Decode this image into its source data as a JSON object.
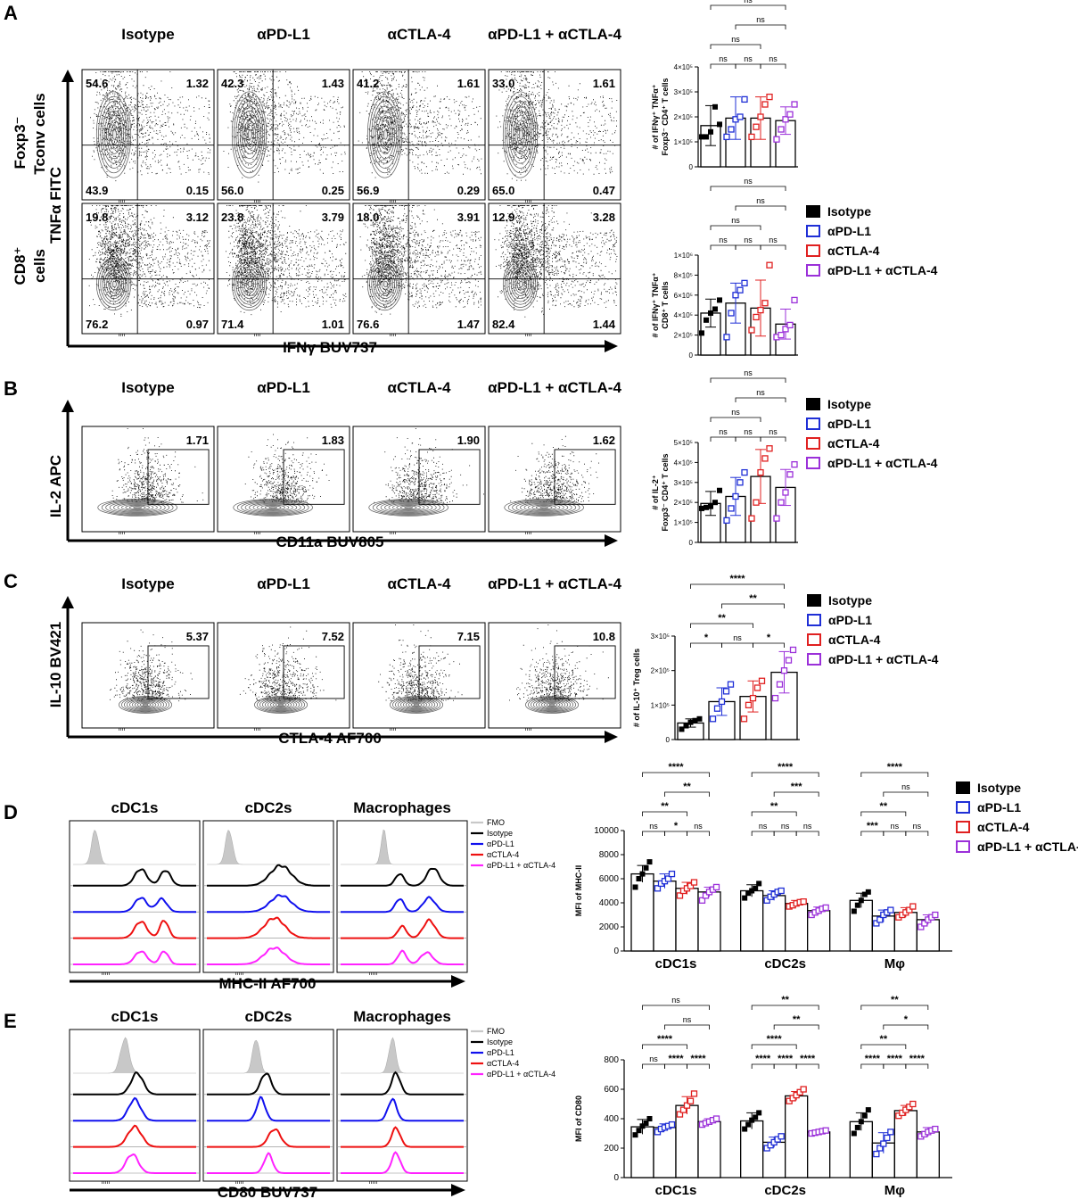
{
  "colors": {
    "isotype": "#000000",
    "pdl1": "#1f2fd6",
    "ctla4": "#e02020",
    "combo": "#9b30d9",
    "fmo": "#c8c8c8",
    "hist_pdl1": "#1010ee",
    "hist_ctla4": "#ee1010",
    "hist_combo": "#ff22ff"
  },
  "panels": {
    "A": "A",
    "B": "B",
    "C": "C",
    "D": "D",
    "E": "E"
  },
  "conditions": [
    "Isotype",
    "αPD-L1",
    "αCTLA-4",
    "αPD-L1 + αCTLA-4"
  ],
  "legend_full": [
    "Isotype",
    "αPD-L1",
    "αCTLA-4",
    "αPD-L1 + αCTLA-4"
  ],
  "panel_A": {
    "row1_label": [
      "Foxp3",
      "⁻",
      "Tconv cells"
    ],
    "row2_label": [
      "CD8",
      "⁺",
      "cells"
    ],
    "y_axis": "TNFα FITC",
    "x_axis": "IFNγ BUV737",
    "row1_quadrants": [
      [
        "54.6",
        "1.32",
        "43.9",
        "0.15"
      ],
      [
        "42.3",
        "1.43",
        "56.0",
        "0.25"
      ],
      [
        "41.2",
        "1.61",
        "56.9",
        "0.29"
      ],
      [
        "33.0",
        "1.61",
        "65.0",
        "0.47"
      ]
    ],
    "row2_quadrants": [
      [
        "19.8",
        "3.12",
        "76.2",
        "0.97"
      ],
      [
        "23.8",
        "3.79",
        "71.4",
        "1.01"
      ],
      [
        "18.0",
        "3.91",
        "76.6",
        "1.47"
      ],
      [
        "12.9",
        "3.28",
        "82.4",
        "1.44"
      ]
    ]
  },
  "panel_B": {
    "y_axis": "IL-2 APC",
    "x_axis": "CD11a BUV805",
    "gates": [
      "1.71",
      "1.83",
      "1.90",
      "1.62"
    ]
  },
  "panel_C": {
    "y_axis": "IL-10 BV421",
    "x_axis": "CTLA-4 AF700",
    "gates": [
      "5.37",
      "7.52",
      "7.15",
      "10.8"
    ]
  },
  "panel_D": {
    "columns": [
      "cDC1s",
      "cDC2s",
      "Macrophages"
    ],
    "x_axis": "MHC-II AF700",
    "hist_legend": [
      "FMO",
      "Isotype",
      "αPD-L1",
      "αCTLA-4",
      "αPD-L1 + αCTLA-4"
    ]
  },
  "panel_E": {
    "columns": [
      "cDC1s",
      "cDC2s",
      "Macrophages"
    ],
    "x_axis": "CD80 BUV737",
    "hist_legend": [
      "FMO",
      "Isotype",
      "αPD-L1",
      "αCTLA-4",
      "αPD-L1 + αCTLA-4"
    ]
  },
  "chart_data": [
    {
      "id": "A1",
      "type": "bar",
      "ylabel": [
        "# of IFNγ⁺ TNFα⁺",
        "Foxp3⁻ CD4⁺ T cells"
      ],
      "ylim": [
        0,
        400000
      ],
      "ticks": [
        0,
        100000,
        200000,
        300000,
        400000
      ],
      "tick_labels": [
        "0",
        "1×10⁵",
        "2×10⁵",
        "3×10⁵",
        "4×10⁵"
      ],
      "categories": [
        "Isotype",
        "αPD-L1",
        "αCTLA-4",
        "αPD-L1 + αCTLA-4"
      ],
      "values": [
        165000,
        195000,
        195000,
        185000
      ],
      "errors": [
        80000,
        85000,
        85000,
        55000
      ],
      "points": [
        [
          120000,
          120000,
          140000,
          240000,
          170000
        ],
        [
          120000,
          150000,
          190000,
          200000,
          270000
        ],
        [
          120000,
          160000,
          200000,
          250000,
          280000
        ],
        [
          110000,
          150000,
          190000,
          210000,
          250000
        ]
      ],
      "sig": [
        {
          "pair": [
            0,
            1
          ],
          "label": "ns"
        },
        {
          "pair": [
            1,
            2
          ],
          "label": "ns"
        },
        {
          "pair": [
            2,
            3
          ],
          "label": "ns"
        },
        {
          "pair": [
            0,
            2
          ],
          "label": "ns"
        },
        {
          "pair": [
            1,
            3
          ],
          "label": "ns"
        },
        {
          "pair": [
            0,
            3
          ],
          "label": "ns"
        }
      ]
    },
    {
      "id": "A2",
      "type": "bar",
      "ylabel": [
        "# of IFNγ⁺ TNFα⁺",
        "CD8⁺ T cells"
      ],
      "ylim": [
        0,
        1000000
      ],
      "ticks": [
        0,
        200000,
        400000,
        600000,
        800000,
        1000000
      ],
      "tick_labels": [
        "0",
        "2×10⁵",
        "4×10⁵",
        "6×10⁵",
        "8×10⁵",
        "1×10⁶"
      ],
      "categories": [
        "Isotype",
        "αPD-L1",
        "αCTLA-4",
        "αPD-L1 + αCTLA-4"
      ],
      "values": [
        420000,
        520000,
        470000,
        310000
      ],
      "errors": [
        140000,
        200000,
        280000,
        150000
      ],
      "points": [
        [
          220000,
          350000,
          420000,
          460000,
          550000
        ],
        [
          180000,
          420000,
          600000,
          650000,
          720000
        ],
        [
          250000,
          380000,
          450000,
          520000,
          900000
        ],
        [
          180000,
          200000,
          260000,
          300000,
          550000
        ]
      ],
      "sig": [
        {
          "pair": [
            0,
            1
          ],
          "label": "ns"
        },
        {
          "pair": [
            1,
            2
          ],
          "label": "ns"
        },
        {
          "pair": [
            2,
            3
          ],
          "label": "ns"
        },
        {
          "pair": [
            0,
            2
          ],
          "label": "ns"
        },
        {
          "pair": [
            1,
            3
          ],
          "label": "ns"
        },
        {
          "pair": [
            0,
            3
          ],
          "label": "ns"
        }
      ]
    },
    {
      "id": "B1",
      "type": "bar",
      "ylabel": [
        "# of  IL-2⁺",
        "Foxp3⁻ CD4⁺ T cells"
      ],
      "ylim": [
        0,
        500000
      ],
      "ticks": [
        0,
        100000,
        200000,
        300000,
        400000,
        500000
      ],
      "tick_labels": [
        "0",
        "1×10⁵",
        "2×10⁵",
        "3×10⁵",
        "4×10⁵",
        "5×10⁵"
      ],
      "categories": [
        "Isotype",
        "αPD-L1",
        "αCTLA-4",
        "αPD-L1 + αCTLA-4"
      ],
      "values": [
        195000,
        230000,
        330000,
        275000
      ],
      "errors": [
        60000,
        95000,
        135000,
        90000
      ],
      "points": [
        [
          170000,
          175000,
          180000,
          200000,
          260000
        ],
        [
          110000,
          170000,
          230000,
          300000,
          350000
        ],
        [
          120000,
          200000,
          350000,
          420000,
          470000
        ],
        [
          120000,
          200000,
          250000,
          340000,
          390000
        ]
      ],
      "sig": [
        {
          "pair": [
            0,
            1
          ],
          "label": "ns"
        },
        {
          "pair": [
            1,
            2
          ],
          "label": "ns"
        },
        {
          "pair": [
            2,
            3
          ],
          "label": "ns"
        },
        {
          "pair": [
            0,
            2
          ],
          "label": "ns"
        },
        {
          "pair": [
            1,
            3
          ],
          "label": "ns"
        },
        {
          "pair": [
            0,
            3
          ],
          "label": "ns"
        }
      ]
    },
    {
      "id": "C1",
      "type": "bar",
      "ylabel": [
        "# of IL-10⁺ Treg cells"
      ],
      "ylim": [
        0,
        300000
      ],
      "ticks": [
        0,
        100000,
        200000,
        300000
      ],
      "tick_labels": [
        "0",
        "1×10⁵",
        "2×10⁵",
        "3×10⁵"
      ],
      "categories": [
        "Isotype",
        "αPD-L1",
        "αCTLA-4",
        "αPD-L1 + αCTLA-4"
      ],
      "values": [
        48000,
        110000,
        125000,
        195000
      ],
      "errors": [
        12000,
        40000,
        45000,
        60000
      ],
      "points": [
        [
          30000,
          40000,
          50000,
          55000,
          60000
        ],
        [
          60000,
          90000,
          110000,
          140000,
          160000
        ],
        [
          60000,
          100000,
          120000,
          150000,
          170000
        ],
        [
          120000,
          160000,
          200000,
          230000,
          260000
        ]
      ],
      "sig": [
        {
          "pair": [
            0,
            1
          ],
          "label": "*"
        },
        {
          "pair": [
            1,
            2
          ],
          "label": "ns"
        },
        {
          "pair": [
            2,
            3
          ],
          "label": "*"
        },
        {
          "pair": [
            0,
            2
          ],
          "label": "**"
        },
        {
          "pair": [
            1,
            3
          ],
          "label": "**"
        },
        {
          "pair": [
            0,
            3
          ],
          "label": "****"
        }
      ]
    },
    {
      "id": "D1",
      "type": "bar",
      "ylabel": [
        "MFI of MHC-II"
      ],
      "ylim": [
        0,
        10000
      ],
      "ticks": [
        0,
        2000,
        4000,
        6000,
        8000,
        10000
      ],
      "tick_labels": [
        "0",
        "2000",
        "4000",
        "6000",
        "8000",
        "10000"
      ],
      "groups": [
        "cDC1s",
        "cDC2s",
        "Mφ"
      ],
      "series": [
        {
          "name": "Isotype",
          "values": [
            6400,
            5000,
            4200
          ]
        },
        {
          "name": "αPD-L1",
          "values": [
            5800,
            4600,
            2900
          ]
        },
        {
          "name": "αCTLA-4",
          "values": [
            5200,
            3950,
            3200
          ]
        },
        {
          "name": "αPD-L1 + αCTLA-4",
          "values": [
            4900,
            3350,
            2600
          ]
        }
      ],
      "errors": [
        [
          700,
          500,
          600
        ],
        [
          600,
          400,
          500
        ],
        [
          500,
          250,
          400
        ],
        [
          400,
          300,
          400
        ]
      ],
      "points": [
        [
          [
            5300,
            6000,
            6400,
            6900,
            7400
          ],
          [
            4400,
            4800,
            5000,
            5200,
            5600
          ],
          [
            3300,
            3800,
            4200,
            4700,
            4900
          ]
        ],
        [
          [
            5200,
            5600,
            5800,
            6000,
            6400
          ],
          [
            4200,
            4500,
            4700,
            4900,
            5000
          ],
          [
            2300,
            2600,
            3000,
            3200,
            3400
          ]
        ],
        [
          [
            4600,
            5000,
            5200,
            5400,
            5700
          ],
          [
            3700,
            3800,
            3950,
            4050,
            4100
          ],
          [
            2800,
            3000,
            3200,
            3400,
            3700
          ]
        ],
        [
          [
            4200,
            4600,
            4900,
            5100,
            5300
          ],
          [
            3000,
            3200,
            3350,
            3500,
            3600
          ],
          [
            2000,
            2300,
            2600,
            2800,
            3000
          ]
        ]
      ],
      "sig": [
        [
          {
            "pair": [
              0,
              1
            ],
            "label": "ns"
          },
          {
            "pair": [
              1,
              2
            ],
            "label": "*"
          },
          {
            "pair": [
              2,
              3
            ],
            "label": "ns"
          },
          {
            "pair": [
              0,
              2
            ],
            "label": "**"
          },
          {
            "pair": [
              1,
              3
            ],
            "label": "**"
          },
          {
            "pair": [
              0,
              3
            ],
            "label": "****"
          }
        ],
        [
          {
            "pair": [
              0,
              1
            ],
            "label": "ns"
          },
          {
            "pair": [
              1,
              2
            ],
            "label": "ns"
          },
          {
            "pair": [
              2,
              3
            ],
            "label": "ns"
          },
          {
            "pair": [
              0,
              2
            ],
            "label": "**"
          },
          {
            "pair": [
              1,
              3
            ],
            "label": "***"
          },
          {
            "pair": [
              0,
              3
            ],
            "label": "****"
          }
        ],
        [
          {
            "pair": [
              0,
              1
            ],
            "label": "***"
          },
          {
            "pair": [
              1,
              2
            ],
            "label": "ns"
          },
          {
            "pair": [
              2,
              3
            ],
            "label": "ns"
          },
          {
            "pair": [
              0,
              2
            ],
            "label": "**"
          },
          {
            "pair": [
              1,
              3
            ],
            "label": "ns"
          },
          {
            "pair": [
              0,
              3
            ],
            "label": "****"
          }
        ]
      ]
    },
    {
      "id": "E1",
      "type": "bar",
      "ylabel": [
        "MFI of CD80"
      ],
      "ylim": [
        0,
        800
      ],
      "ticks": [
        0,
        200,
        400,
        600,
        800
      ],
      "tick_labels": [
        "0",
        "200",
        "400",
        "600",
        "800"
      ],
      "groups": [
        "cDC1s",
        "cDC2s",
        "Mφ"
      ],
      "series": [
        {
          "name": "Isotype",
          "values": [
            345,
            385,
            380
          ]
        },
        {
          "name": "αPD-L1",
          "values": [
            340,
            240,
            235
          ]
        },
        {
          "name": "αCTLA-4",
          "values": [
            490,
            555,
            455
          ]
        },
        {
          "name": "αPD-L1 + αCTLA-4",
          "values": [
            380,
            310,
            310
          ]
        }
      ],
      "errors": [
        [
          50,
          55,
          60
        ],
        [
          25,
          35,
          70
        ],
        [
          60,
          30,
          35
        ],
        [
          20,
          10,
          30
        ]
      ],
      "points": [
        [
          [
            290,
            320,
            350,
            370,
            400
          ],
          [
            330,
            360,
            390,
            410,
            440
          ],
          [
            300,
            340,
            380,
            420,
            460
          ]
        ],
        [
          [
            310,
            330,
            340,
            350,
            360
          ],
          [
            200,
            220,
            240,
            260,
            280
          ],
          [
            160,
            200,
            230,
            270,
            310
          ]
        ],
        [
          [
            430,
            460,
            490,
            520,
            570
          ],
          [
            520,
            540,
            560,
            580,
            600
          ],
          [
            420,
            440,
            460,
            480,
            500
          ]
        ],
        [
          [
            360,
            370,
            380,
            390,
            400
          ],
          [
            300,
            305,
            310,
            315,
            320
          ],
          [
            280,
            295,
            310,
            320,
            330
          ]
        ]
      ],
      "sig": [
        [
          {
            "pair": [
              0,
              1
            ],
            "label": "ns"
          },
          {
            "pair": [
              1,
              2
            ],
            "label": "****"
          },
          {
            "pair": [
              2,
              3
            ],
            "label": "****"
          },
          {
            "pair": [
              0,
              2
            ],
            "label": "****"
          },
          {
            "pair": [
              1,
              3
            ],
            "label": "ns"
          },
          {
            "pair": [
              0,
              3
            ],
            "label": "ns"
          }
        ],
        [
          {
            "pair": [
              0,
              1
            ],
            "label": "****"
          },
          {
            "pair": [
              1,
              2
            ],
            "label": "****"
          },
          {
            "pair": [
              2,
              3
            ],
            "label": "****"
          },
          {
            "pair": [
              0,
              2
            ],
            "label": "****"
          },
          {
            "pair": [
              1,
              3
            ],
            "label": "**"
          },
          {
            "pair": [
              0,
              3
            ],
            "label": "**"
          }
        ],
        [
          {
            "pair": [
              0,
              1
            ],
            "label": "****"
          },
          {
            "pair": [
              1,
              2
            ],
            "label": "****"
          },
          {
            "pair": [
              2,
              3
            ],
            "label": "****"
          },
          {
            "pair": [
              0,
              2
            ],
            "label": "**"
          },
          {
            "pair": [
              1,
              3
            ],
            "label": "*"
          },
          {
            "pair": [
              0,
              3
            ],
            "label": "**"
          }
        ]
      ]
    }
  ]
}
